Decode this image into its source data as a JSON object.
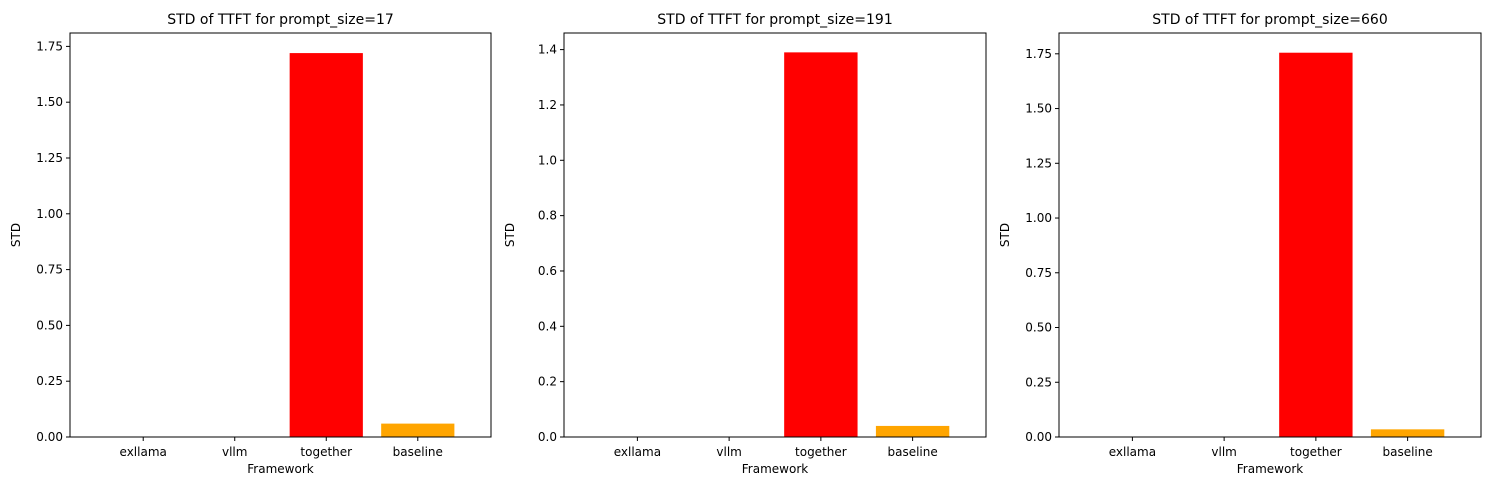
{
  "chart_data": [
    {
      "type": "bar",
      "title": "STD of TTFT for prompt_size=17",
      "xlabel": "Framework",
      "ylabel": "STD",
      "categories": [
        "exllama",
        "vllm",
        "together",
        "baseline"
      ],
      "values": [
        0.0,
        0.0,
        1.72,
        0.06
      ],
      "colors": [
        "#1f77b4",
        "#2ca02c",
        "#ff0000",
        "#ffa500"
      ],
      "ylim": [
        0,
        1.81
      ],
      "yticks": [
        0.0,
        0.25,
        0.5,
        0.75,
        1.0,
        1.25,
        1.5,
        1.75
      ],
      "ytick_labels": [
        "0.00",
        "0.25",
        "0.50",
        "0.75",
        "1.00",
        "1.25",
        "1.50",
        "1.75"
      ],
      "grid": false
    },
    {
      "type": "bar",
      "title": "STD of TTFT for prompt_size=191",
      "xlabel": "Framework",
      "ylabel": "STD",
      "categories": [
        "exllama",
        "vllm",
        "together",
        "baseline"
      ],
      "values": [
        0.0,
        0.0,
        1.39,
        0.04
      ],
      "colors": [
        "#1f77b4",
        "#2ca02c",
        "#ff0000",
        "#ffa500"
      ],
      "ylim": [
        0,
        1.46
      ],
      "yticks": [
        0.0,
        0.2,
        0.4,
        0.6,
        0.8,
        1.0,
        1.2,
        1.4
      ],
      "ytick_labels": [
        "0.0",
        "0.2",
        "0.4",
        "0.6",
        "0.8",
        "1.0",
        "1.2",
        "1.4"
      ],
      "grid": false
    },
    {
      "type": "bar",
      "title": "STD of TTFT for prompt_size=660",
      "xlabel": "Framework",
      "ylabel": "STD",
      "categories": [
        "exllama",
        "vllm",
        "together",
        "baseline"
      ],
      "values": [
        0.0,
        0.0,
        1.755,
        0.035
      ],
      "colors": [
        "#1f77b4",
        "#2ca02c",
        "#ff0000",
        "#ffa500"
      ],
      "ylim": [
        0,
        1.845
      ],
      "yticks": [
        0.0,
        0.25,
        0.5,
        0.75,
        1.0,
        1.25,
        1.5,
        1.75
      ],
      "ytick_labels": [
        "0.00",
        "0.25",
        "0.50",
        "0.75",
        "1.00",
        "1.25",
        "1.50",
        "1.75"
      ],
      "grid": false
    }
  ]
}
